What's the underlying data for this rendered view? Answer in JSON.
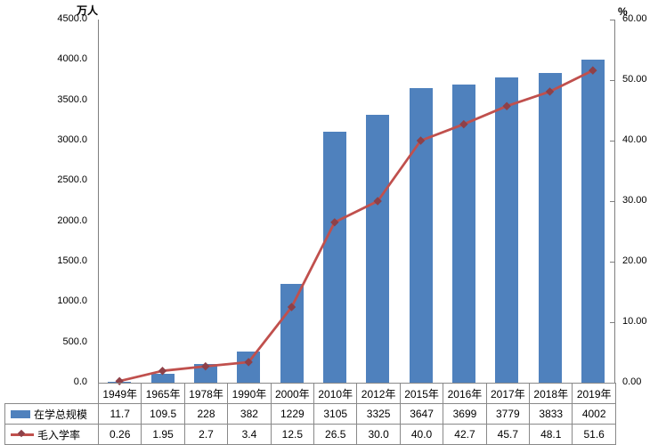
{
  "axes": {
    "left": {
      "title": "万人",
      "ticks": [
        "4500.0",
        "4000.0",
        "3500.0",
        "3000.0",
        "2500.0",
        "2000.0",
        "1500.0",
        "1000.0",
        "500.0",
        "0.0"
      ]
    },
    "right": {
      "title": "%",
      "ticks": [
        "60.00",
        "50.00",
        "40.00",
        "30.00",
        "20.00",
        "10.00",
        "0.00"
      ]
    }
  },
  "chart_data": {
    "type": "combo-bar-line",
    "categories": [
      "1949年",
      "1965年",
      "1978年",
      "1990年",
      "2000年",
      "2010年",
      "2012年",
      "2015年",
      "2016年",
      "2017年",
      "2018年",
      "2019年"
    ],
    "series": [
      {
        "name": "在学总规模",
        "type": "bar",
        "axis": "left",
        "color": "#4f81bd",
        "values": [
          11.7,
          109.5,
          228,
          382,
          1229,
          3105,
          3325,
          3647,
          3699,
          3779,
          3833,
          4002
        ],
        "display": [
          "11.7",
          "109.5",
          "228",
          "382",
          "1229",
          "3105",
          "3325",
          "3647",
          "3699",
          "3779",
          "3833",
          "4002"
        ]
      },
      {
        "name": "毛入学率",
        "type": "line",
        "axis": "right",
        "color": "#c0504d",
        "marker": "diamond",
        "marker_color": "#8e4149",
        "values": [
          0.26,
          1.95,
          2.7,
          3.4,
          12.5,
          26.5,
          30.0,
          40.0,
          42.7,
          45.7,
          48.1,
          51.6
        ],
        "display": [
          "0.26",
          "1.95",
          "2.7",
          "3.4",
          "12.5",
          "26.5",
          "30.0",
          "40.0",
          "42.7",
          "45.7",
          "48.1",
          "51.6"
        ]
      }
    ],
    "left_axis": {
      "min": 0,
      "max": 4500,
      "step": 500,
      "title": "万人"
    },
    "right_axis": {
      "min": 0,
      "max": 60,
      "step": 10,
      "title": "%"
    },
    "grid": false,
    "legend_position": "table-left",
    "title": ""
  }
}
